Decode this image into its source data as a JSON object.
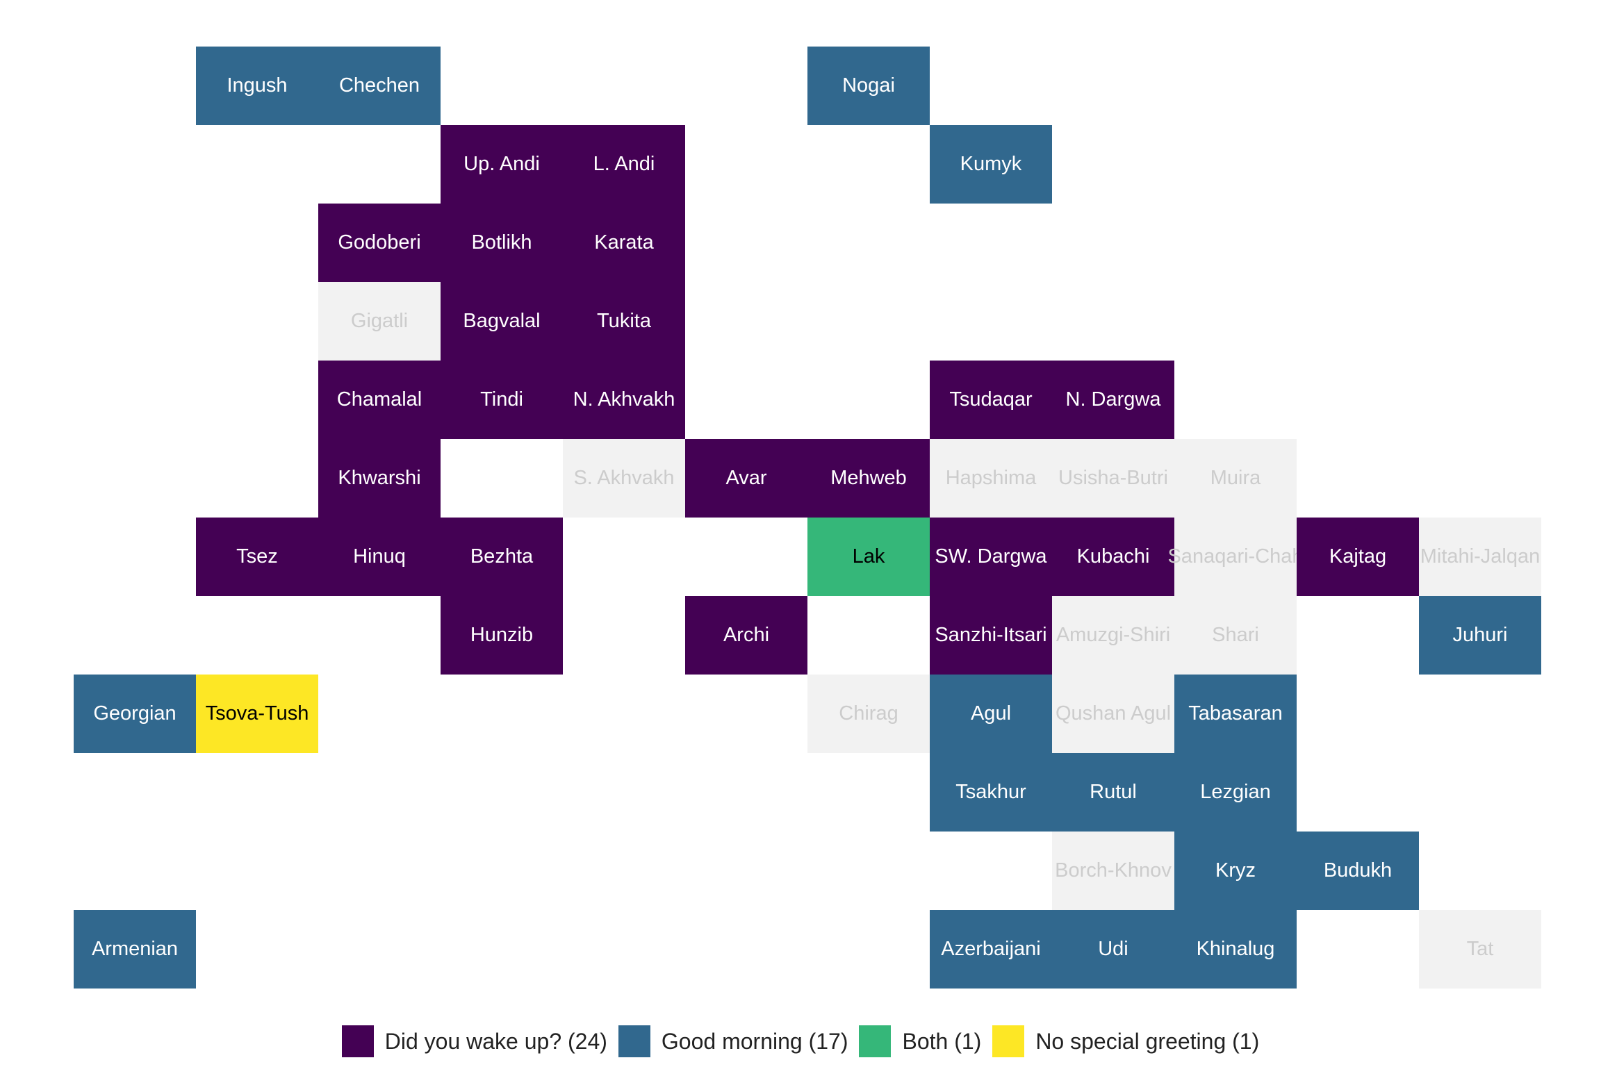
{
  "chart_data": {
    "type": "heatmap",
    "title": "",
    "xlabel": "",
    "ylabel": "",
    "grid": false,
    "legend_position": "bottom",
    "categories": [
      {
        "key": "wake",
        "label": "Did you wake up? (24)",
        "color": "#440154",
        "text_color": "#ffffff"
      },
      {
        "key": "morning",
        "label": "Good morning (17)",
        "color": "#31688e",
        "text_color": "#ffffff"
      },
      {
        "key": "both",
        "label": "Both (1)",
        "color": "#35b779",
        "text_color": "#000000"
      },
      {
        "key": "none",
        "label": "No special greeting (1)",
        "color": "#fde725",
        "text_color": "#000000"
      },
      {
        "key": "missing",
        "label": "",
        "color": "#f2f2f2",
        "text_color": "#cccccc"
      }
    ],
    "tiles": [
      {
        "name": "Ingush",
        "col": 1,
        "row": 0,
        "category": "morning"
      },
      {
        "name": "Chechen",
        "col": 2,
        "row": 0,
        "category": "morning"
      },
      {
        "name": "Nogai",
        "col": 6,
        "row": 0,
        "category": "morning"
      },
      {
        "name": "Up. Andi",
        "col": 3,
        "row": 1,
        "category": "wake"
      },
      {
        "name": "L. Andi",
        "col": 4,
        "row": 1,
        "category": "wake"
      },
      {
        "name": "Kumyk",
        "col": 7,
        "row": 1,
        "category": "morning"
      },
      {
        "name": "Godoberi",
        "col": 2,
        "row": 2,
        "category": "wake"
      },
      {
        "name": "Botlikh",
        "col": 3,
        "row": 2,
        "category": "wake"
      },
      {
        "name": "Karata",
        "col": 4,
        "row": 2,
        "category": "wake"
      },
      {
        "name": "Gigatli",
        "col": 2,
        "row": 3,
        "category": "missing"
      },
      {
        "name": "Bagvalal",
        "col": 3,
        "row": 3,
        "category": "wake"
      },
      {
        "name": "Tukita",
        "col": 4,
        "row": 3,
        "category": "wake"
      },
      {
        "name": "Chamalal",
        "col": 2,
        "row": 4,
        "category": "wake"
      },
      {
        "name": "Tindi",
        "col": 3,
        "row": 4,
        "category": "wake"
      },
      {
        "name": "N. Akhvakh",
        "col": 4,
        "row": 4,
        "category": "wake"
      },
      {
        "name": "Tsudaqar",
        "col": 7,
        "row": 4,
        "category": "wake"
      },
      {
        "name": "N. Dargwa",
        "col": 8,
        "row": 4,
        "category": "wake"
      },
      {
        "name": "Khwarshi",
        "col": 2,
        "row": 5,
        "category": "wake"
      },
      {
        "name": "S. Akhvakh",
        "col": 4,
        "row": 5,
        "category": "missing"
      },
      {
        "name": "Avar",
        "col": 5,
        "row": 5,
        "category": "wake"
      },
      {
        "name": "Mehweb",
        "col": 6,
        "row": 5,
        "category": "wake"
      },
      {
        "name": "Hapshima",
        "col": 7,
        "row": 5,
        "category": "missing"
      },
      {
        "name": "Usisha-Butri",
        "col": 8,
        "row": 5,
        "category": "missing"
      },
      {
        "name": "Muira",
        "col": 9,
        "row": 5,
        "category": "missing"
      },
      {
        "name": "Tsez",
        "col": 1,
        "row": 6,
        "category": "wake"
      },
      {
        "name": "Hinuq",
        "col": 2,
        "row": 6,
        "category": "wake"
      },
      {
        "name": "Bezhta",
        "col": 3,
        "row": 6,
        "category": "wake"
      },
      {
        "name": "Lak",
        "col": 6,
        "row": 6,
        "category": "both"
      },
      {
        "name": "SW. Dargwa",
        "col": 7,
        "row": 6,
        "category": "wake"
      },
      {
        "name": "Kubachi",
        "col": 8,
        "row": 6,
        "category": "wake"
      },
      {
        "name": "Sanaqari-Chah",
        "col": 9,
        "row": 6,
        "category": "missing"
      },
      {
        "name": "Kajtag",
        "col": 10,
        "row": 6,
        "category": "wake"
      },
      {
        "name": "Mitahi-Jalqan",
        "col": 11,
        "row": 6,
        "category": "missing"
      },
      {
        "name": "Hunzib",
        "col": 3,
        "row": 7,
        "category": "wake"
      },
      {
        "name": "Archi",
        "col": 5,
        "row": 7,
        "category": "wake"
      },
      {
        "name": "Sanzhi-Itsari",
        "col": 7,
        "row": 7,
        "category": "wake"
      },
      {
        "name": "Amuzgi-Shiri",
        "col": 8,
        "row": 7,
        "category": "missing"
      },
      {
        "name": "Shari",
        "col": 9,
        "row": 7,
        "category": "missing"
      },
      {
        "name": "Juhuri",
        "col": 11,
        "row": 7,
        "category": "morning"
      },
      {
        "name": "Georgian",
        "col": 0,
        "row": 8,
        "category": "morning"
      },
      {
        "name": "Tsova-Tush",
        "col": 1,
        "row": 8,
        "category": "none"
      },
      {
        "name": "Chirag",
        "col": 6,
        "row": 8,
        "category": "missing"
      },
      {
        "name": "Agul",
        "col": 7,
        "row": 8,
        "category": "morning"
      },
      {
        "name": "Qushan Agul",
        "col": 8,
        "row": 8,
        "category": "missing"
      },
      {
        "name": "Tabasaran",
        "col": 9,
        "row": 8,
        "category": "morning"
      },
      {
        "name": "Tsakhur",
        "col": 7,
        "row": 9,
        "category": "morning"
      },
      {
        "name": "Rutul",
        "col": 8,
        "row": 9,
        "category": "morning"
      },
      {
        "name": "Lezgian",
        "col": 9,
        "row": 9,
        "category": "morning"
      },
      {
        "name": "Borch-Khnov",
        "col": 8,
        "row": 10,
        "category": "missing"
      },
      {
        "name": "Kryz",
        "col": 9,
        "row": 10,
        "category": "morning"
      },
      {
        "name": "Budukh",
        "col": 10,
        "row": 10,
        "category": "morning"
      },
      {
        "name": "Armenian",
        "col": 0,
        "row": 11,
        "category": "morning"
      },
      {
        "name": "Azerbaijani",
        "col": 7,
        "row": 11,
        "category": "morning"
      },
      {
        "name": "Udi",
        "col": 8,
        "row": 11,
        "category": "morning"
      },
      {
        "name": "Khinalug",
        "col": 9,
        "row": 11,
        "category": "morning"
      },
      {
        "name": "Tat",
        "col": 11,
        "row": 11,
        "category": "missing"
      }
    ]
  }
}
